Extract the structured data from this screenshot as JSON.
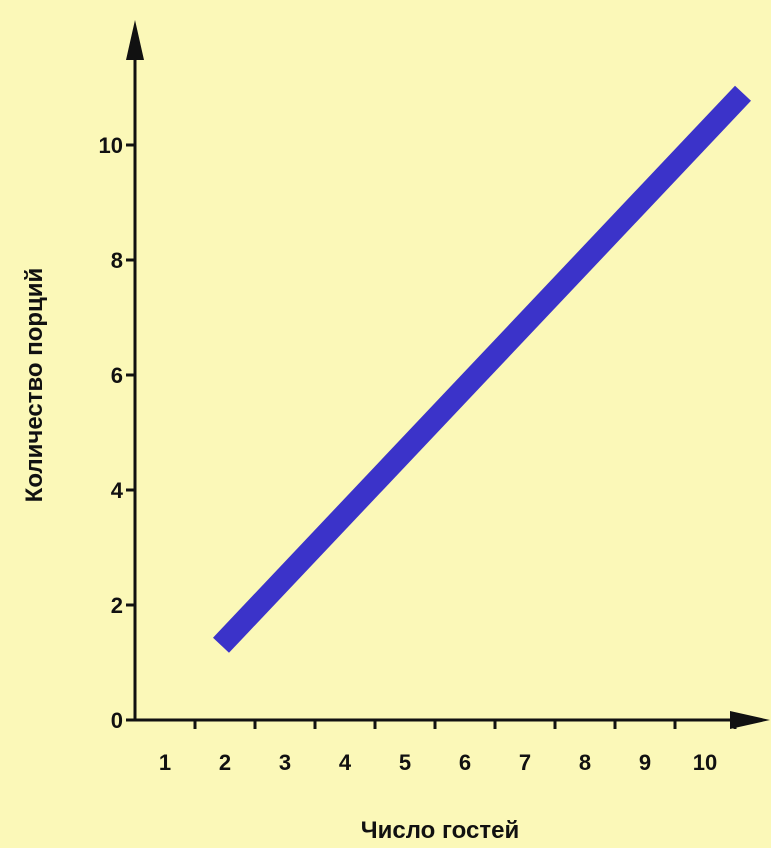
{
  "chart_data": {
    "type": "line",
    "title": "",
    "xlabel": "Число гостей",
    "ylabel": "Количество порций",
    "x_ticks": [
      1,
      2,
      3,
      4,
      5,
      6,
      7,
      8,
      9,
      10
    ],
    "y_ticks": [
      0,
      2,
      4,
      6,
      8,
      10
    ],
    "xlim": [
      0,
      11
    ],
    "ylim": [
      0,
      11.5
    ],
    "grid": false,
    "series": [
      {
        "x": [
          1.5,
          10.2
        ],
        "y": [
          1.3,
          10.9
        ]
      }
    ],
    "colors": {
      "line": "#3b33c9",
      "axis": "#111111",
      "background": "#fbf8b8"
    }
  }
}
